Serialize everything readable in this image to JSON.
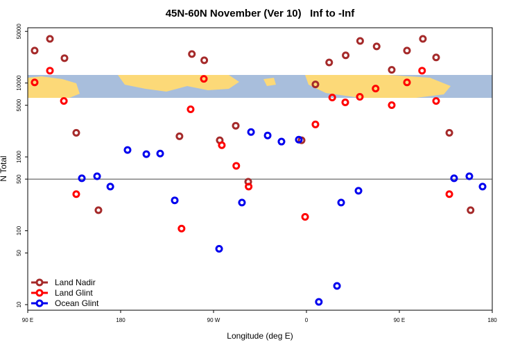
{
  "chart_data": {
    "type": "scatter",
    "title": "45N-60N November (Ver 10)   Inf to -Inf",
    "x_label": "Longitude (deg E)",
    "y_label": "N Total",
    "log_y": true,
    "legend": "bottomleft",
    "hline": 500,
    "xlim": [
      90,
      540
    ],
    "ylim": [
      8.4,
      56000
    ],
    "xticks": [
      {
        "value": 90,
        "label": "90 E"
      },
      {
        "value": 180,
        "label": "180"
      },
      {
        "value": 270,
        "label": "90 W"
      },
      {
        "value": 360,
        "label": "0"
      },
      {
        "value": 450,
        "label": "90 E"
      },
      {
        "value": 540,
        "label": "180"
      }
    ],
    "yticks": [
      10,
      50,
      100,
      500,
      1000,
      5000,
      10000,
      50000
    ],
    "series": [
      {
        "name": "Land Nadir",
        "color": "#a52a2a",
        "x": [
          96.7,
          111.5,
          125.6,
          137,
          158.5,
          237,
          249,
          261,
          276,
          291.5,
          303.6,
          355.3,
          368.7,
          382,
          398,
          412,
          428,
          442.6,
          457.4,
          472.8,
          485.6,
          498.4,
          519
        ],
        "values": [
          27500,
          39600,
          21700,
          2120,
          190,
          1900,
          24700,
          20300,
          1680,
          2640,
          461,
          1680,
          9570,
          19000,
          23700,
          37100,
          31300,
          15100,
          27500,
          39600,
          22200,
          2120,
          190
        ]
      },
      {
        "name": "Land Glint",
        "color": "#ff0000",
        "x": [
          96.7,
          111.5,
          125,
          137,
          239,
          247.8,
          260.6,
          278,
          292,
          304,
          358.7,
          368.7,
          385,
          397.6,
          411.7,
          427,
          442.6,
          457.4,
          472,
          485.6,
          498.4
        ],
        "values": [
          10200,
          14700,
          5710,
          313,
          107,
          4410,
          11400,
          1440,
          757,
          396,
          154,
          2750,
          6370,
          5470,
          6500,
          8410,
          5020,
          10200,
          14700,
          5710,
          313
        ]
      },
      {
        "name": "Ocean Glint",
        "color": "#0000ee",
        "x": [
          142.4,
          157.2,
          170,
          186.7,
          204.9,
          218.3,
          232.4,
          275.4,
          297.5,
          306.3,
          322.4,
          335.8,
          352.6,
          372,
          389.6,
          393.6,
          410.4,
          503,
          517.8,
          530.6
        ],
        "values": [
          513,
          547,
          396,
          1240,
          1090,
          1110,
          258,
          57,
          241,
          2170,
          1950,
          1610,
          1710,
          10.9,
          17.9,
          241,
          348,
          513,
          547,
          396
        ]
      }
    ]
  }
}
